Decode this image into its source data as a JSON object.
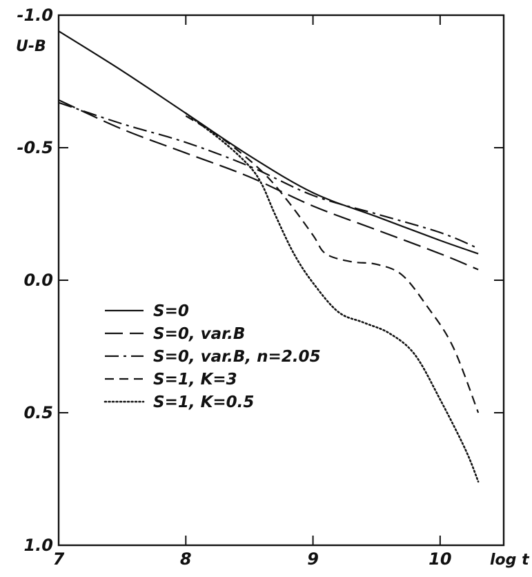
{
  "chart_data": {
    "type": "line",
    "title": "",
    "xlabel": "log t",
    "ylabel": "U-B",
    "xlim": [
      7,
      10.5
    ],
    "ylim": [
      -1.0,
      1.0
    ],
    "y_inverted": true,
    "grid": false,
    "legend_position": "lower-left",
    "x_ticks": [
      {
        "value": 7,
        "label": "7"
      },
      {
        "value": 8,
        "label": "8"
      },
      {
        "value": 9,
        "label": "9"
      },
      {
        "value": 10,
        "label": "10"
      }
    ],
    "y_ticks": [
      {
        "value": -1.0,
        "label": "-1.0"
      },
      {
        "value": -0.5,
        "label": "-0.5"
      },
      {
        "value": 0.0,
        "label": "0.0"
      },
      {
        "value": 0.5,
        "label": "0.5"
      },
      {
        "value": 1.0,
        "label": "1.0"
      }
    ],
    "series": [
      {
        "name": "S=0",
        "style": "solid",
        "x": [
          7.0,
          7.5,
          8.0,
          8.5,
          9.0,
          9.5,
          10.0,
          10.3
        ],
        "y": [
          -0.94,
          -0.79,
          -0.63,
          -0.47,
          -0.33,
          -0.24,
          -0.15,
          -0.1
        ]
      },
      {
        "name": "S=0, var.B",
        "style": "longdash",
        "x": [
          7.0,
          7.5,
          8.0,
          8.5,
          9.0,
          9.5,
          10.0,
          10.3
        ],
        "y": [
          -0.68,
          -0.57,
          -0.48,
          -0.39,
          -0.28,
          -0.19,
          -0.1,
          -0.04
        ]
      },
      {
        "name": "S=0, var.B, n=2.05",
        "style": "dashdot",
        "x": [
          7.0,
          7.5,
          8.0,
          8.5,
          9.0,
          9.5,
          10.0,
          10.3
        ],
        "y": [
          -0.67,
          -0.59,
          -0.52,
          -0.43,
          -0.32,
          -0.25,
          -0.18,
          -0.12
        ]
      },
      {
        "name": "S=1, K=3",
        "style": "dash",
        "x": [
          8.0,
          8.3,
          8.6,
          8.8,
          9.0,
          9.1,
          9.3,
          9.5,
          9.7,
          9.9,
          10.1,
          10.3
        ],
        "y": [
          -0.62,
          -0.53,
          -0.41,
          -0.3,
          -0.17,
          -0.1,
          -0.07,
          -0.06,
          -0.02,
          0.1,
          0.25,
          0.5
        ]
      },
      {
        "name": "S=1, K=0.5",
        "style": "dotted",
        "x": [
          8.0,
          8.3,
          8.5,
          8.6,
          8.7,
          8.85,
          9.0,
          9.2,
          9.4,
          9.6,
          9.8,
          10.0,
          10.2,
          10.3
        ],
        "y": [
          -0.63,
          -0.52,
          -0.43,
          -0.36,
          -0.25,
          -0.1,
          0.01,
          0.12,
          0.16,
          0.2,
          0.28,
          0.45,
          0.64,
          0.76
        ]
      }
    ]
  }
}
